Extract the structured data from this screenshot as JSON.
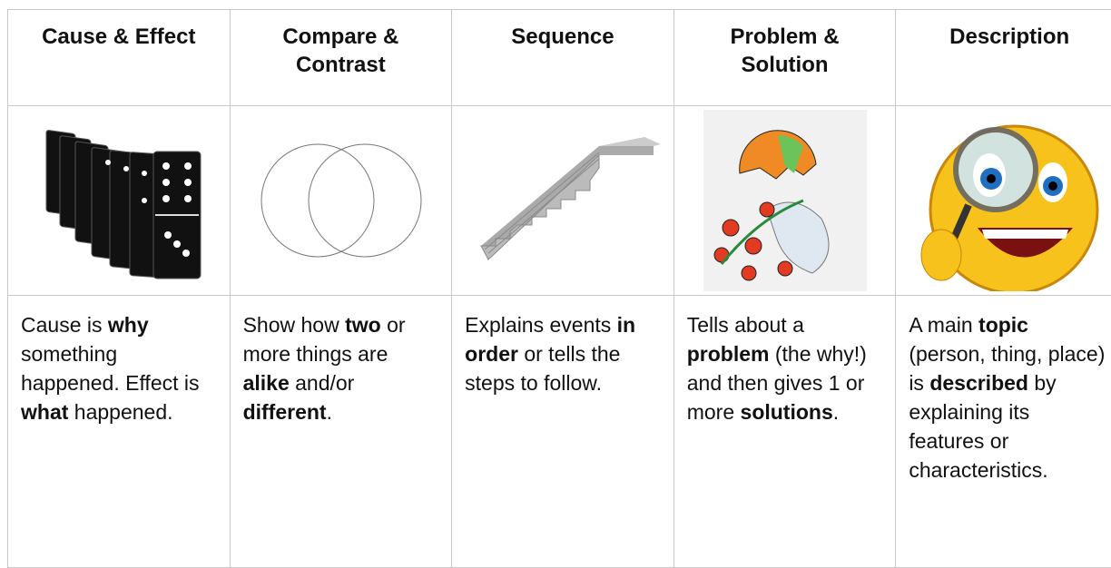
{
  "table": {
    "headers": [
      "Cause & Effect",
      "Compare & Contrast",
      "Sequence",
      "Problem & Solution",
      "Description"
    ],
    "descriptions": [
      [
        {
          "text": "Cause is "
        },
        {
          "text": "why",
          "bold": true
        },
        {
          "text": " something happened. Effect is "
        },
        {
          "text": "what",
          "bold": true
        },
        {
          "text": " happened."
        }
      ],
      [
        {
          "text": "Show how "
        },
        {
          "text": "two",
          "bold": true
        },
        {
          "text": " or more things are "
        },
        {
          "text": "alike",
          "bold": true
        },
        {
          "text": " and/or "
        },
        {
          "text": "different",
          "bold": true
        },
        {
          "text": "."
        }
      ],
      [
        {
          "text": "Explains events "
        },
        {
          "text": "in order",
          "bold": true
        },
        {
          "text": " or tells the steps to follow."
        }
      ],
      [
        {
          "text": "Tells about a "
        },
        {
          "text": "problem",
          "bold": true
        },
        {
          "text": " (the why!) and then gives 1 or more "
        },
        {
          "text": "solutions",
          "bold": true
        },
        {
          "text": "."
        }
      ],
      [
        {
          "text": "A main "
        },
        {
          "text": "topic",
          "bold": true
        },
        {
          "text": " (person, thing, place) is "
        },
        {
          "text": "described",
          "bold": true
        },
        {
          "text": " by explaining its features or characteristics."
        }
      ]
    ]
  }
}
